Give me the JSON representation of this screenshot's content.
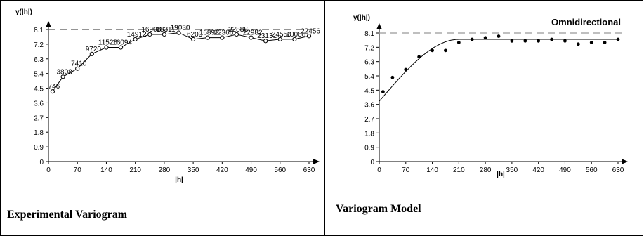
{
  "panels": {
    "left": {
      "caption": "Experimental Variogram"
    },
    "right": {
      "caption": "Variogram Model"
    }
  },
  "chart_data": [
    {
      "type": "line",
      "title": "",
      "ylabel": "γ(|h|)",
      "xlabel": "|h|",
      "xlim": [
        0,
        630
      ],
      "ylim": [
        0,
        8.1
      ],
      "xticks": [
        0,
        70,
        140,
        210,
        280,
        350,
        420,
        490,
        560,
        630
      ],
      "yticks": [
        0,
        0.9,
        1.8,
        2.7,
        3.6,
        4.5,
        5.4,
        6.3,
        7.2,
        8.1
      ],
      "sill_line": 8.1,
      "grid": false,
      "series": [
        {
          "marker": "open-circle",
          "x": [
            10,
            35,
            70,
            105,
            140,
            175,
            210,
            245,
            280,
            315,
            350,
            385,
            420,
            455,
            490,
            525,
            560,
            595,
            630
          ],
          "y": [
            4.3,
            5.2,
            5.7,
            6.6,
            7.0,
            7.0,
            7.5,
            7.8,
            7.8,
            7.9,
            7.5,
            7.6,
            7.6,
            7.8,
            7.6,
            7.4,
            7.5,
            7.5,
            7.7
          ],
          "labels": [
            "746",
            "3808",
            "7410",
            "9720",
            "11526",
            "16094",
            "14912",
            "16908",
            "18311",
            "19030",
            "6203",
            "16892",
            "22366",
            "22888",
            "22982",
            "23131",
            "24550",
            "20068",
            "22456"
          ]
        }
      ]
    },
    {
      "type": "scatter",
      "title": "Omnidirectional",
      "ylabel": "γ(|h|)",
      "xlabel": "|h|",
      "xlim": [
        0,
        630
      ],
      "ylim": [
        0,
        8.1
      ],
      "xticks": [
        0,
        70,
        140,
        210,
        280,
        350,
        420,
        490,
        560,
        630
      ],
      "yticks": [
        0,
        0.9,
        1.8,
        2.7,
        3.6,
        4.5,
        5.4,
        6.3,
        7.2,
        8.1
      ],
      "sill_line": 8.1,
      "grid": false,
      "series": [
        {
          "marker": "filled-dot",
          "x": [
            10,
            35,
            70,
            105,
            140,
            175,
            210,
            245,
            280,
            315,
            350,
            385,
            420,
            455,
            490,
            525,
            560,
            595,
            630
          ],
          "y": [
            4.4,
            5.3,
            5.8,
            6.6,
            7.0,
            7.0,
            7.5,
            7.7,
            7.8,
            7.9,
            7.6,
            7.6,
            7.6,
            7.7,
            7.6,
            7.4,
            7.5,
            7.5,
            7.7
          ]
        }
      ],
      "model": {
        "type": "spherical",
        "nugget": 3.8,
        "sill": 7.7,
        "range": 210
      }
    }
  ]
}
